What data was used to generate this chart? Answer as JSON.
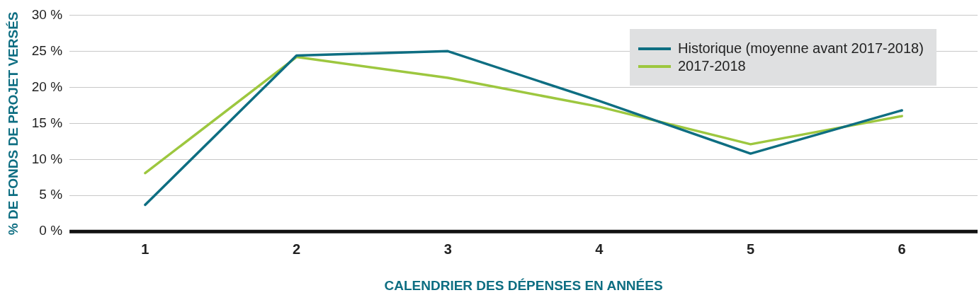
{
  "chart_data": {
    "type": "line",
    "xlabel": "CALENDRIER DES DÉPENSES EN ANNÉES",
    "ylabel": "% DE FONDS DE PROJET VERSÉS",
    "categories": [
      "1",
      "2",
      "3",
      "4",
      "5",
      "6"
    ],
    "series": [
      {
        "name": "Historique (moyenne avant 2017-2018)",
        "color": "#0e6e82",
        "values": [
          3.7,
          24.4,
          25.0,
          18.1,
          10.8,
          16.8
        ]
      },
      {
        "name": "2017-2018",
        "color": "#9dc73f",
        "values": [
          8.1,
          24.2,
          21.3,
          17.3,
          12.1,
          16.0
        ]
      }
    ],
    "ylim": [
      0,
      30
    ],
    "yticks": [
      {
        "value": 0,
        "label": "0 %"
      },
      {
        "value": 5,
        "label": "5 %"
      },
      {
        "value": 10,
        "label": "10 %"
      },
      {
        "value": 15,
        "label": "15 %"
      },
      {
        "value": 20,
        "label": "20 %"
      },
      {
        "value": 25,
        "label": "25 %"
      },
      {
        "value": 30,
        "label": "30 %"
      }
    ],
    "grid": "y",
    "legend": "top right",
    "marker": "none",
    "line_style": "solid"
  }
}
